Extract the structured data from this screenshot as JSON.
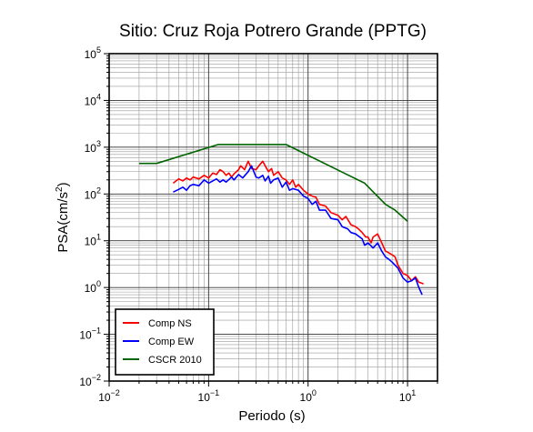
{
  "chart_data": {
    "type": "line",
    "title": "Sitio: Cruz Roja Potrero Grande (PPTG)",
    "xlabel": "Periodo (s)",
    "ylabel_base": "PSA(cm/s",
    "ylabel_sup": "2",
    "ylabel_end": ")",
    "x_scale": "log",
    "y_scale": "log",
    "xlim": [
      0.01,
      20
    ],
    "ylim": [
      0.01,
      100000
    ],
    "grid": true,
    "legend_position": "bottom-left",
    "x_ticks": [
      {
        "value": 0.01,
        "base": "10",
        "exp": "−2"
      },
      {
        "value": 0.1,
        "base": "10",
        "exp": "−1"
      },
      {
        "value": 1,
        "base": "10",
        "exp": "0"
      },
      {
        "value": 10,
        "base": "10",
        "exp": "1"
      }
    ],
    "y_ticks": [
      {
        "value": 0.01,
        "base": "10",
        "exp": "−2"
      },
      {
        "value": 0.1,
        "base": "10",
        "exp": "−1"
      },
      {
        "value": 1,
        "base": "10",
        "exp": "0"
      },
      {
        "value": 10,
        "base": "10",
        "exp": "1"
      },
      {
        "value": 100,
        "base": "10",
        "exp": "2"
      },
      {
        "value": 1000,
        "base": "10",
        "exp": "3"
      },
      {
        "value": 10000,
        "base": "10",
        "exp": "4"
      },
      {
        "value": 100000,
        "base": "10",
        "exp": "5"
      }
    ],
    "series": [
      {
        "name": "Comp NS",
        "color": "#ff0000",
        "points": [
          [
            0.044,
            170
          ],
          [
            0.05,
            210
          ],
          [
            0.055,
            190
          ],
          [
            0.06,
            220
          ],
          [
            0.065,
            200
          ],
          [
            0.07,
            230
          ],
          [
            0.08,
            210
          ],
          [
            0.09,
            250
          ],
          [
            0.1,
            220
          ],
          [
            0.11,
            280
          ],
          [
            0.12,
            260
          ],
          [
            0.13,
            330
          ],
          [
            0.14,
            300
          ],
          [
            0.15,
            250
          ],
          [
            0.16,
            280
          ],
          [
            0.17,
            230
          ],
          [
            0.18,
            270
          ],
          [
            0.2,
            330
          ],
          [
            0.21,
            400
          ],
          [
            0.23,
            330
          ],
          [
            0.25,
            500
          ],
          [
            0.27,
            350
          ],
          [
            0.3,
            330
          ],
          [
            0.32,
            400
          ],
          [
            0.35,
            500
          ],
          [
            0.37,
            400
          ],
          [
            0.4,
            300
          ],
          [
            0.43,
            350
          ],
          [
            0.45,
            250
          ],
          [
            0.5,
            300
          ],
          [
            0.55,
            220
          ],
          [
            0.6,
            200
          ],
          [
            0.65,
            160
          ],
          [
            0.7,
            200
          ],
          [
            0.75,
            140
          ],
          [
            0.8,
            160
          ],
          [
            0.9,
            120
          ],
          [
            1,
            100
          ],
          [
            1.1,
            90
          ],
          [
            1.2,
            85
          ],
          [
            1.3,
            60
          ],
          [
            1.5,
            55
          ],
          [
            1.7,
            40
          ],
          [
            2,
            35
          ],
          [
            2.2,
            28
          ],
          [
            2.4,
            33
          ],
          [
            2.7,
            22
          ],
          [
            3,
            20
          ],
          [
            3.2,
            18
          ],
          [
            3.5,
            15
          ],
          [
            3.8,
            12
          ],
          [
            4,
            12
          ],
          [
            4.3,
            9
          ],
          [
            4.5,
            12
          ],
          [
            5,
            14
          ],
          [
            5.5,
            9
          ],
          [
            6,
            6
          ],
          [
            6.5,
            5.5
          ],
          [
            7,
            5
          ],
          [
            7.5,
            4.5
          ],
          [
            8,
            3
          ],
          [
            9,
            2
          ],
          [
            10,
            1.8
          ],
          [
            11,
            1.4
          ],
          [
            12,
            1.7
          ],
          [
            13,
            1.3
          ],
          [
            14.5,
            1.2
          ]
        ]
      },
      {
        "name": "Comp EW",
        "color": "#0000ff",
        "points": [
          [
            0.044,
            110
          ],
          [
            0.05,
            125
          ],
          [
            0.055,
            140
          ],
          [
            0.06,
            120
          ],
          [
            0.065,
            150
          ],
          [
            0.07,
            160
          ],
          [
            0.08,
            150
          ],
          [
            0.09,
            200
          ],
          [
            0.1,
            170
          ],
          [
            0.11,
            190
          ],
          [
            0.12,
            210
          ],
          [
            0.13,
            180
          ],
          [
            0.14,
            200
          ],
          [
            0.15,
            180
          ],
          [
            0.17,
            230
          ],
          [
            0.18,
            200
          ],
          [
            0.2,
            260
          ],
          [
            0.22,
            220
          ],
          [
            0.25,
            300
          ],
          [
            0.27,
            400
          ],
          [
            0.3,
            230
          ],
          [
            0.32,
            220
          ],
          [
            0.35,
            250
          ],
          [
            0.37,
            190
          ],
          [
            0.4,
            240
          ],
          [
            0.42,
            170
          ],
          [
            0.45,
            200
          ],
          [
            0.5,
            220
          ],
          [
            0.55,
            140
          ],
          [
            0.6,
            180
          ],
          [
            0.65,
            120
          ],
          [
            0.7,
            130
          ],
          [
            0.8,
            120
          ],
          [
            0.9,
            90
          ],
          [
            1,
            80
          ],
          [
            1.1,
            60
          ],
          [
            1.2,
            70
          ],
          [
            1.3,
            45
          ],
          [
            1.5,
            45
          ],
          [
            1.7,
            30
          ],
          [
            2,
            28
          ],
          [
            2.2,
            20
          ],
          [
            2.5,
            18
          ],
          [
            2.7,
            15
          ],
          [
            3,
            14
          ],
          [
            3.5,
            11
          ],
          [
            3.7,
            8
          ],
          [
            4,
            9
          ],
          [
            4.5,
            7
          ],
          [
            5,
            9
          ],
          [
            5.5,
            6
          ],
          [
            6,
            4.5
          ],
          [
            6.5,
            4
          ],
          [
            7,
            3.5
          ],
          [
            7.5,
            3
          ],
          [
            8,
            2.6
          ],
          [
            9,
            1.6
          ],
          [
            10,
            1.3
          ],
          [
            11,
            1.4
          ],
          [
            12,
            1.6
          ],
          [
            13,
            1
          ],
          [
            14,
            0.7
          ]
        ]
      },
      {
        "name": "CSCR 2010",
        "color": "#006400",
        "points": [
          [
            0.02,
            450
          ],
          [
            0.03,
            450
          ],
          [
            0.125,
            1140
          ],
          [
            0.6,
            1140
          ],
          [
            3.7,
            170
          ],
          [
            6,
            60
          ],
          [
            7.5,
            45
          ],
          [
            10,
            26
          ]
        ]
      }
    ]
  }
}
